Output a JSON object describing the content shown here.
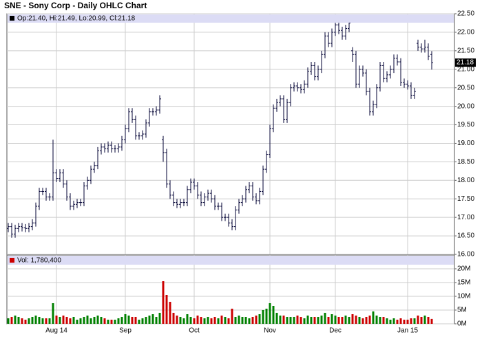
{
  "chart_data": [
    {
      "type": "ohlc",
      "title": "SNE - Sony Corp - Daily OHLC Chart",
      "legend": "Op:21.40, Hi:21.49, Lo:20.99, Cl:21.18",
      "last_label": "21.18",
      "color": "#000033",
      "grid": true,
      "categories": [
        null,
        null,
        null,
        null,
        null,
        null,
        null,
        null,
        null,
        null,
        null,
        null,
        null,
        null,
        "Aug 14",
        null,
        null,
        null,
        null,
        null,
        null,
        null,
        null,
        null,
        null,
        null,
        null,
        null,
        null,
        null,
        null,
        null,
        null,
        null,
        "Sep",
        null,
        null,
        null,
        null,
        null,
        null,
        null,
        null,
        null,
        null,
        null,
        null,
        null,
        null,
        null,
        null,
        null,
        null,
        null,
        "Oct",
        null,
        null,
        null,
        null,
        null,
        null,
        null,
        null,
        null,
        null,
        null,
        null,
        null,
        null,
        null,
        null,
        null,
        null,
        null,
        null,
        null,
        "Nov",
        null,
        null,
        null,
        null,
        null,
        null,
        null,
        null,
        null,
        null,
        null,
        null,
        null,
        null,
        null,
        null,
        null,
        null,
        "Dec",
        null,
        null,
        null,
        null,
        null,
        null,
        null,
        null,
        null,
        null,
        null,
        null,
        null,
        null,
        null,
        null,
        null,
        null,
        null,
        null,
        "Jan 15",
        null,
        null,
        null,
        null,
        null,
        null,
        null
      ],
      "open": [
        16.7,
        16.75,
        16.55,
        16.7,
        16.75,
        16.72,
        16.7,
        16.75,
        16.85,
        17.3,
        17.7,
        17.7,
        17.55,
        17.55,
        18.2,
        18.05,
        18.2,
        17.9,
        17.55,
        17.3,
        17.35,
        17.4,
        17.4,
        17.85,
        18.0,
        18.3,
        18.4,
        18.8,
        18.9,
        18.85,
        18.95,
        18.85,
        18.85,
        18.9,
        19.1,
        19.4,
        19.85,
        19.65,
        19.2,
        19.2,
        19.25,
        19.55,
        19.85,
        19.85,
        19.9,
        19.1,
        18.75,
        17.9,
        17.6,
        17.4,
        17.35,
        17.4,
        17.4,
        17.75,
        17.95,
        17.85,
        17.6,
        17.4,
        17.55,
        17.65,
        17.5,
        17.3,
        17.3,
        17.0,
        17.0,
        16.85,
        16.75,
        17.2,
        17.4,
        17.5,
        17.75,
        17.85,
        17.55,
        17.45,
        17.7,
        18.3,
        18.7,
        19.4,
        19.95,
        20.1,
        20.2,
        19.65,
        20.1,
        20.5,
        20.55,
        20.5,
        20.45,
        20.6,
        20.95,
        21.1,
        20.8,
        21.0,
        21.4,
        21.9,
        21.7,
        22.0,
        22.2,
        22.05,
        21.9,
        22.1,
        21.5,
        21.4,
        20.6,
        21.0,
        20.9,
        20.4,
        19.85,
        20.05,
        20.5,
        21.1,
        20.75,
        20.85,
        21.0,
        21.3,
        21.2,
        20.65,
        20.6,
        20.55,
        20.3,
        21.7,
        21.6,
        21.55,
        21.6,
        21.4
      ],
      "high": [
        16.85,
        16.85,
        16.8,
        16.85,
        16.85,
        16.82,
        16.85,
        16.95,
        17.4,
        17.8,
        17.8,
        17.8,
        17.65,
        19.1,
        18.3,
        18.3,
        18.3,
        18.0,
        17.65,
        17.45,
        17.5,
        17.5,
        17.95,
        18.1,
        18.4,
        18.5,
        18.9,
        19.0,
        19.0,
        19.05,
        19.05,
        18.95,
        19.0,
        19.2,
        19.5,
        19.95,
        19.95,
        19.75,
        19.3,
        19.35,
        19.65,
        19.95,
        19.95,
        20.0,
        20.3,
        19.2,
        18.85,
        18.0,
        17.7,
        17.5,
        17.5,
        17.5,
        17.85,
        18.05,
        18.05,
        17.95,
        17.7,
        17.65,
        17.75,
        17.75,
        17.6,
        17.4,
        17.4,
        17.1,
        17.1,
        16.95,
        17.3,
        17.5,
        17.6,
        17.85,
        17.95,
        17.95,
        17.65,
        17.8,
        18.4,
        18.8,
        19.5,
        20.05,
        20.2,
        20.3,
        20.3,
        20.2,
        20.6,
        20.65,
        20.65,
        20.6,
        20.7,
        21.05,
        21.2,
        21.2,
        21.1,
        21.5,
        22.0,
        22.0,
        22.1,
        22.3,
        22.3,
        22.15,
        22.2,
        22.35,
        21.6,
        21.5,
        21.1,
        21.1,
        21.0,
        20.5,
        20.15,
        20.6,
        21.2,
        21.2,
        20.95,
        21.1,
        21.4,
        21.4,
        21.3,
        20.75,
        20.7,
        20.65,
        20.5,
        21.8,
        21.7,
        21.8,
        21.7,
        21.49
      ],
      "low": [
        16.6,
        16.45,
        16.45,
        16.6,
        16.62,
        16.6,
        16.6,
        16.65,
        16.75,
        17.2,
        17.6,
        17.45,
        17.45,
        17.45,
        17.95,
        17.95,
        17.8,
        17.45,
        17.2,
        17.2,
        17.25,
        17.3,
        17.3,
        17.75,
        17.9,
        18.2,
        18.3,
        18.7,
        18.75,
        18.75,
        18.75,
        18.75,
        18.75,
        18.8,
        19.0,
        19.3,
        19.55,
        19.1,
        19.1,
        19.1,
        19.15,
        19.45,
        19.75,
        19.75,
        19.8,
        18.5,
        17.8,
        17.5,
        17.3,
        17.25,
        17.25,
        17.3,
        17.3,
        17.65,
        17.75,
        17.5,
        17.3,
        17.3,
        17.45,
        17.4,
        17.2,
        17.2,
        16.9,
        16.9,
        16.75,
        16.65,
        16.65,
        17.1,
        17.3,
        17.4,
        17.65,
        17.45,
        17.35,
        17.35,
        17.6,
        18.2,
        18.6,
        19.3,
        19.85,
        20.0,
        19.55,
        19.55,
        20.0,
        20.4,
        20.4,
        20.35,
        20.35,
        20.5,
        20.85,
        20.7,
        20.7,
        20.9,
        21.3,
        21.6,
        21.6,
        21.9,
        21.95,
        21.8,
        21.8,
        22.0,
        21.2,
        20.5,
        20.5,
        20.8,
        20.3,
        19.75,
        19.75,
        19.95,
        20.4,
        20.65,
        20.65,
        20.75,
        20.9,
        21.1,
        20.55,
        20.5,
        20.45,
        20.2,
        20.2,
        21.5,
        21.45,
        21.45,
        21.25,
        20.99
      ],
      "close": [
        16.75,
        16.55,
        16.7,
        16.75,
        16.72,
        16.7,
        16.75,
        16.85,
        17.3,
        17.7,
        17.7,
        17.55,
        17.55,
        18.2,
        18.05,
        18.2,
        17.9,
        17.55,
        17.3,
        17.35,
        17.4,
        17.4,
        17.85,
        18.0,
        18.3,
        18.4,
        18.8,
        18.9,
        18.85,
        18.95,
        18.85,
        18.85,
        18.9,
        19.1,
        19.4,
        19.85,
        19.65,
        19.2,
        19.2,
        19.25,
        19.55,
        19.85,
        19.85,
        19.9,
        20.2,
        18.75,
        17.9,
        17.6,
        17.4,
        17.35,
        17.4,
        17.4,
        17.75,
        17.95,
        17.85,
        17.6,
        17.4,
        17.55,
        17.65,
        17.5,
        17.3,
        17.3,
        17.0,
        17.0,
        16.85,
        16.75,
        17.2,
        17.4,
        17.5,
        17.75,
        17.85,
        17.55,
        17.45,
        17.7,
        18.3,
        18.7,
        19.4,
        19.95,
        20.1,
        20.2,
        19.65,
        20.1,
        20.5,
        20.55,
        20.5,
        20.45,
        20.6,
        20.95,
        21.1,
        20.8,
        21.0,
        21.4,
        21.9,
        21.7,
        22.0,
        22.2,
        22.05,
        21.9,
        22.1,
        22.25,
        21.4,
        20.6,
        21.0,
        20.9,
        20.4,
        19.85,
        20.05,
        20.5,
        21.1,
        20.75,
        20.85,
        21.0,
        21.3,
        21.2,
        20.65,
        20.6,
        20.55,
        20.3,
        20.4,
        21.6,
        21.55,
        21.6,
        21.35,
        21.18
      ],
      "ylim": [
        16,
        22.5
      ],
      "yticks": [
        {
          "value": 16,
          "label": "16.00"
        },
        {
          "value": 16.5,
          "label": "16.50"
        },
        {
          "value": 17,
          "label": "17.00"
        },
        {
          "value": 17.5,
          "label": "17.50"
        },
        {
          "value": 18,
          "label": "18.00"
        },
        {
          "value": 18.5,
          "label": "18.50"
        },
        {
          "value": 19,
          "label": "19.00"
        },
        {
          "value": 19.5,
          "label": "19.50"
        },
        {
          "value": 20,
          "label": "20.00"
        },
        {
          "value": 20.5,
          "label": "20.50"
        },
        {
          "value": 21,
          "label": "21.00"
        },
        {
          "value": 21.5,
          "label": "21.50"
        },
        {
          "value": 22,
          "label": "22.00"
        },
        {
          "value": 22.5,
          "label": "22.50"
        }
      ]
    },
    {
      "type": "bar",
      "legend": "Vol: 1,780,400",
      "up_color": "#008000",
      "down_color": "#cc0000",
      "grid": true,
      "values": [
        2,
        2.5,
        3,
        2.5,
        2,
        1.5,
        2,
        2.5,
        3,
        2.5,
        2,
        2,
        2,
        7.5,
        3,
        2.5,
        3,
        2.5,
        2,
        2.5,
        1.5,
        2,
        2.5,
        3,
        2,
        2.5,
        3,
        2.5,
        2,
        1.5,
        1.5,
        1.5,
        2,
        2.5,
        3.5,
        3,
        2.5,
        2.5,
        1.5,
        2,
        2.5,
        3,
        3.5,
        2.5,
        4,
        15.5,
        10.5,
        8,
        4,
        3,
        2.5,
        2,
        3.5,
        2.5,
        2,
        3,
        2.5,
        2,
        2.5,
        2,
        2.5,
        2,
        3,
        2.5,
        2,
        5.5,
        2.5,
        3,
        2.5,
        2.5,
        2,
        2.5,
        3,
        3.5,
        5,
        5.5,
        7.5,
        6.5,
        4,
        3,
        3,
        2.5,
        2.5,
        2.5,
        3,
        2.5,
        2,
        3,
        2.5,
        2.5,
        2.5,
        3,
        4,
        2.5,
        3.5,
        3,
        2.5,
        2.5,
        3,
        2.5,
        3.5,
        3,
        2.5,
        2,
        2.5,
        3,
        4.5,
        3,
        2.5,
        2.5,
        2,
        1.5,
        2,
        1.5,
        2,
        1.5,
        1.5,
        2,
        2,
        3,
        2.5,
        3,
        2.5,
        1.7804
      ],
      "ylim": [
        0,
        25
      ],
      "yticks": [
        {
          "value": 0,
          "label": "0M"
        },
        {
          "value": 5,
          "label": "5M"
        },
        {
          "value": 10,
          "label": "10M"
        },
        {
          "value": 15,
          "label": "15M"
        },
        {
          "value": 20,
          "label": "20M"
        }
      ]
    }
  ]
}
